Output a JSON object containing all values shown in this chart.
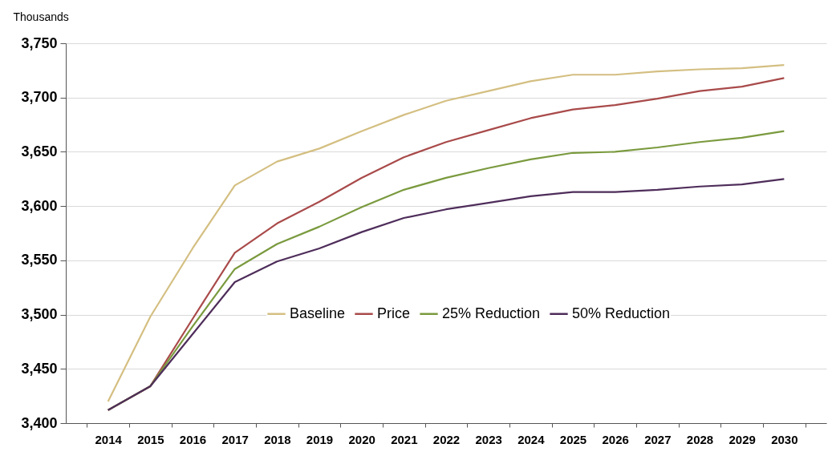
{
  "chart_data": {
    "type": "line",
    "ylabel": "Thousands",
    "categories": [
      "2014",
      "2015",
      "2016",
      "2017",
      "2018",
      "2019",
      "2020",
      "2021",
      "2022",
      "2023",
      "2024",
      "2025",
      "2026",
      "2027",
      "2028",
      "2029",
      "2030"
    ],
    "series": [
      {
        "name": "Baseline",
        "color": "#d4bf82",
        "values": [
          3420,
          3498,
          3561,
          3619,
          3641,
          3653,
          3669,
          3684,
          3697,
          3706,
          3715,
          3721,
          3721,
          3724,
          3726,
          3727,
          3730
        ]
      },
      {
        "name": "Price",
        "color": "#a94a4a",
        "values": [
          3412,
          3434,
          3496,
          3557,
          3584,
          3604,
          3626,
          3645,
          3659,
          3670,
          3681,
          3689,
          3693,
          3699,
          3706,
          3710,
          3718
        ]
      },
      {
        "name": "25% Reduction",
        "color": "#7a9a3e",
        "values": [
          3412,
          3434,
          3489,
          3542,
          3565,
          3581,
          3599,
          3615,
          3626,
          3635,
          3643,
          3649,
          3650,
          3654,
          3659,
          3663,
          3669
        ]
      },
      {
        "name": "50% Reduction",
        "color": "#4e2d5a",
        "values": [
          3412,
          3434,
          3482,
          3530,
          3549,
          3561,
          3576,
          3589,
          3597,
          3603,
          3609,
          3613,
          3613,
          3615,
          3618,
          3620,
          3625
        ]
      }
    ],
    "ylim": [
      3400,
      3750
    ],
    "yticks": [
      {
        "value": 3400,
        "label": "3,400"
      },
      {
        "value": 3450,
        "label": "3,450"
      },
      {
        "value": 3500,
        "label": "3,500"
      },
      {
        "value": 3550,
        "label": "3,550"
      },
      {
        "value": 3600,
        "label": "3,600"
      },
      {
        "value": 3650,
        "label": "3,650"
      },
      {
        "value": 3700,
        "label": "3,700"
      },
      {
        "value": 3750,
        "label": "3,750"
      }
    ],
    "grid": "y",
    "legend": "bottom",
    "line_style": "solid",
    "marker": "none"
  }
}
